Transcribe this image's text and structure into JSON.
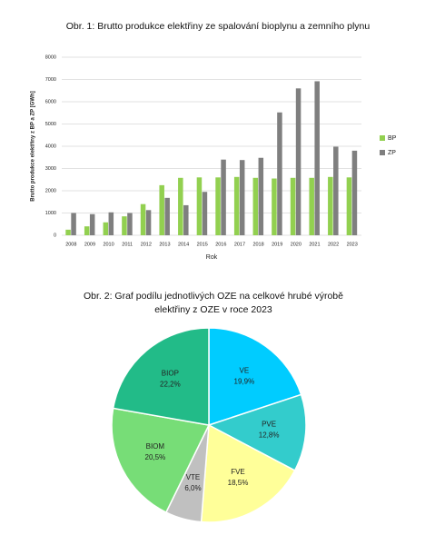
{
  "chart_data": [
    {
      "type": "bar",
      "title": "Obr. 1: Brutto produkce elektřiny ze spalování bioplynu a zemního plynu",
      "x_label": "Rok",
      "y_label": "Brutto produkce elektřiny z BP a ZP [GWh]",
      "categories": [
        "2008",
        "2009",
        "2010",
        "2011",
        "2012",
        "2013",
        "2014",
        "2015",
        "2016",
        "2017",
        "2018",
        "2019",
        "2020",
        "2021",
        "2022",
        "2023"
      ],
      "series": [
        {
          "name": "BP",
          "color": "#92d050",
          "values": [
            250,
            400,
            580,
            850,
            1400,
            2250,
            2580,
            2600,
            2600,
            2620,
            2580,
            2550,
            2580,
            2580,
            2620,
            2600
          ]
        },
        {
          "name": "ZP",
          "color": "#7f7f7f",
          "values": [
            1000,
            950,
            1030,
            1000,
            1130,
            1680,
            1350,
            1950,
            3400,
            3380,
            3480,
            5520,
            6600,
            6920,
            3980,
            3800
          ]
        }
      ],
      "ylim": [
        0,
        8000
      ],
      "yticks": [
        0,
        1000,
        2000,
        3000,
        4000,
        5000,
        6000,
        7000,
        8000
      ],
      "grid": true,
      "legend": "right"
    },
    {
      "type": "pie",
      "title": "Obr. 2: Graf podílu jednotlivých OZE na celkové hrubé výrobě elektřiny z OZE v roce 2023",
      "categories": [
        "VE",
        "PVE",
        "FVE",
        "VTE",
        "BIOM",
        "BIOP"
      ],
      "values": [
        19.9,
        12.8,
        18.5,
        6.0,
        20.5,
        22.2
      ],
      "value_labels": [
        "19,9%",
        "12,8%",
        "18,5%",
        "6,0%",
        "20,5%",
        "22,2%"
      ],
      "colors": [
        "#00ccff",
        "#33cccc",
        "#ffff99",
        "#c0c0c0",
        "#77dd77",
        "#22bb88"
      ]
    }
  ]
}
